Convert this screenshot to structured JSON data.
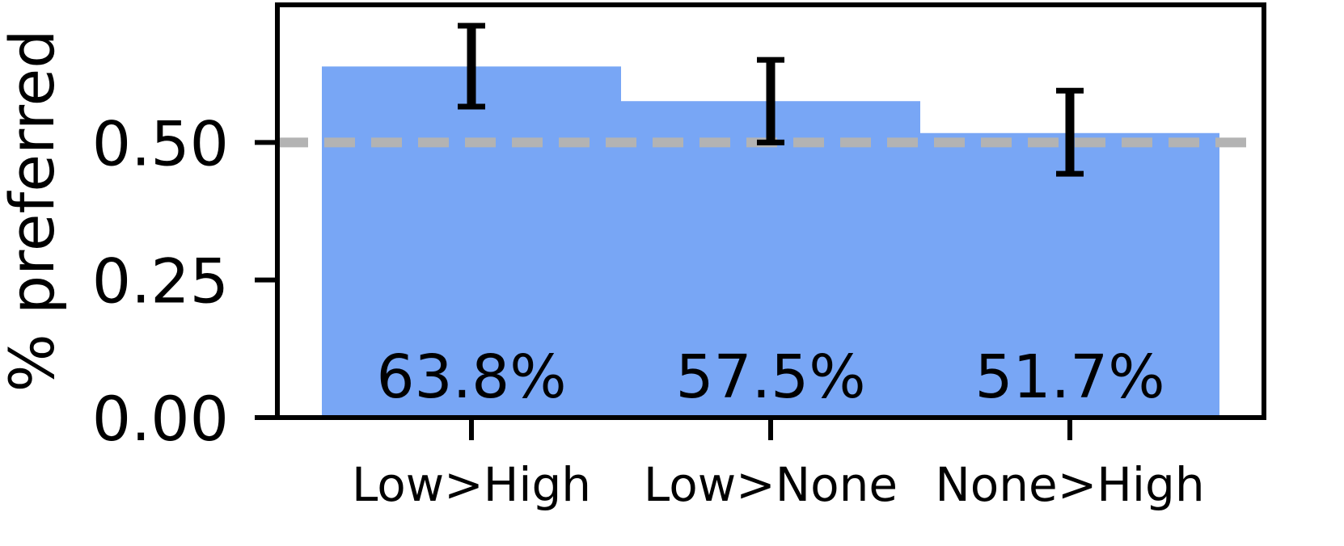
{
  "chart_data": {
    "type": "bar",
    "categories": [
      "Low>High",
      "Low>None",
      "None>High"
    ],
    "values": [
      0.638,
      0.575,
      0.517
    ],
    "value_labels": [
      "63.8%",
      "57.5%",
      "51.7%"
    ],
    "error_bars": [
      {
        "low": 0.565,
        "high": 0.712
      },
      {
        "low": 0.5,
        "high": 0.65
      },
      {
        "low": 0.443,
        "high": 0.594
      }
    ],
    "reference_line": {
      "value": 0.5,
      "style": "dashed",
      "color": "#b3b3b3"
    },
    "title": "",
    "xlabel": "",
    "ylabel": "% preferred",
    "ylim": [
      0,
      0.75
    ],
    "yticks": [
      0.0,
      0.25,
      0.5
    ],
    "ytick_labels": [
      "0.00",
      "0.25",
      "0.50"
    ],
    "grid": false,
    "colors": {
      "bar": "#78a6f5",
      "error": "#000000",
      "axis": "#000000"
    }
  }
}
